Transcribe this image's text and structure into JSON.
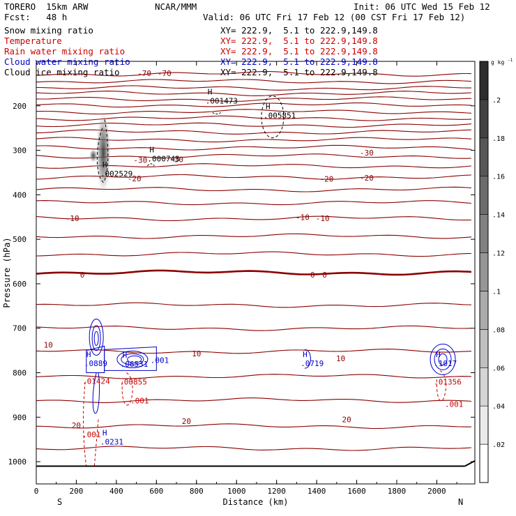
{
  "header": {
    "model": "TORERO  15km ARW",
    "org": "NCAR/MMM",
    "init": "Init: 06 UTC Wed 15 Feb 12",
    "fcst": "Fcst:   48 h",
    "valid": "Valid: 06 UTC Fri 17 Feb 12 (00 CST Fri 17 Feb 12)"
  },
  "legend": [
    {
      "label": "Snow mixing ratio",
      "xy": "",
      "color": "#000000"
    },
    {
      "label": "Temperature",
      "xy": "XY= 222.9,  5.1 to 222.9,149.8",
      "color": "#cc0000"
    },
    {
      "label": "Rain water mixing ratio",
      "xy": "XY= 222.9,  5.1 to 222.9,149.8",
      "color": "#cc0000"
    },
    {
      "label": "Cloud water mixing ratio",
      "xy": "XY= 222.9,  5.1 to 222.9,149.8",
      "color": "#0000cc"
    },
    {
      "label": "Cloud ice mixing ratio",
      "xy": "XY= 222.9,  5.1 to 222.9,149.8",
      "color": "#000000"
    }
  ],
  "xy_snow": "XY= 222.9,  5.1 to 222.9,149.8",
  "colors": {
    "temperature": "#8b0000",
    "rain": "#cc0000",
    "cloud_water": "#0000cc",
    "cloud_ice": "#000000"
  },
  "chart_data": {
    "type": "cross-section",
    "xlabel": "Distance (km)",
    "ylabel": "Pressure (hPa)",
    "xlim": [
      0,
      2190
    ],
    "ylim": [
      1050,
      100
    ],
    "x_ticks": [
      0,
      200,
      400,
      600,
      800,
      1000,
      1200,
      1400,
      1600,
      1800,
      2000
    ],
    "y_ticks": [
      200,
      300,
      400,
      500,
      600,
      700,
      800,
      900,
      1000
    ],
    "x_end_labels": {
      "left": "S",
      "right": "N"
    },
    "colorbar": {
      "unit": "g kg",
      "unit_exp": "-1",
      "ticks": [
        ".02",
        ".04",
        ".06",
        ".08",
        ".1",
        ".12",
        ".14",
        ".16",
        ".18",
        ".2"
      ],
      "values": [
        0.02,
        0.04,
        0.06,
        0.08,
        0.1,
        0.12,
        0.14,
        0.16,
        0.18,
        0.2
      ],
      "range": [
        0,
        0.22
      ]
    },
    "temperature_isotherms_hpa": [
      128,
      145,
      160,
      172,
      185,
      198,
      213,
      228,
      243,
      259,
      276,
      294,
      313,
      335,
      360,
      388,
      418,
      453,
      493,
      533,
      575,
      648,
      700,
      752,
      808,
      862,
      920,
      970
    ],
    "temperature_labels": [
      {
        "x": 540,
        "p": 127,
        "text": "-70"
      },
      {
        "x": 640,
        "p": 127,
        "text": "-70"
      },
      {
        "x": 1650,
        "p": 305,
        "text": "-30"
      },
      {
        "x": 700,
        "p": 320,
        "text": "-30"
      },
      {
        "x": 520,
        "p": 322,
        "text": "-30"
      },
      {
        "x": 490,
        "p": 363,
        "text": "-20"
      },
      {
        "x": 1450,
        "p": 364,
        "text": "-20"
      },
      {
        "x": 1650,
        "p": 362,
        "text": "-20"
      },
      {
        "x": 180,
        "p": 453,
        "text": "-10"
      },
      {
        "x": 1330,
        "p": 450,
        "text": "-10"
      },
      {
        "x": 1430,
        "p": 453,
        "text": "-10"
      },
      {
        "x": 230,
        "p": 580,
        "text": "0"
      },
      {
        "x": 1380,
        "p": 580,
        "text": "0"
      },
      {
        "x": 1440,
        "p": 580,
        "text": "0"
      },
      {
        "x": 60,
        "p": 737,
        "text": "10"
      },
      {
        "x": 800,
        "p": 757,
        "text": "10"
      },
      {
        "x": 1520,
        "p": 768,
        "text": "10"
      },
      {
        "x": 200,
        "p": 918,
        "text": "20"
      },
      {
        "x": 750,
        "p": 909,
        "text": "20"
      },
      {
        "x": 1550,
        "p": 905,
        "text": "20"
      }
    ],
    "maxima": [
      {
        "x": 845,
        "p": 190,
        "text": ".001473",
        "field": "snow"
      },
      {
        "x": 1135,
        "p": 223,
        "text": ".005851",
        "field": "snow"
      },
      {
        "x": 320,
        "p": 354,
        "text": ".002529",
        "field": "snow"
      },
      {
        "x": 555,
        "p": 320,
        "text": ".000743",
        "field": "snow"
      },
      {
        "x": 240,
        "p": 780,
        "text": ".0889",
        "field": "cloud_water"
      },
      {
        "x": 420,
        "p": 782,
        "text": ".06531",
        "field": "cloud_water"
      },
      {
        "x": 570,
        "p": 773,
        "text": ".001",
        "field": "cloud_water"
      },
      {
        "x": 1320,
        "p": 780,
        "text": ".0719",
        "field": "cloud_water"
      },
      {
        "x": 1985,
        "p": 780,
        "text": ".1017",
        "field": "cloud_water"
      },
      {
        "x": 320,
        "p": 957,
        "text": ".0231",
        "field": "cloud_water"
      },
      {
        "x": 230,
        "p": 820,
        "text": ".01424",
        "field": "rain"
      },
      {
        "x": 415,
        "p": 822,
        "text": ".00855",
        "field": "rain"
      },
      {
        "x": 470,
        "p": 864,
        "text": ".001",
        "field": "rain"
      },
      {
        "x": 1985,
        "p": 822,
        "text": ".01356",
        "field": "rain"
      },
      {
        "x": 2040,
        "p": 872,
        "text": ".001",
        "field": "rain"
      },
      {
        "x": 230,
        "p": 940,
        "text": ".001",
        "field": "rain"
      }
    ]
  }
}
